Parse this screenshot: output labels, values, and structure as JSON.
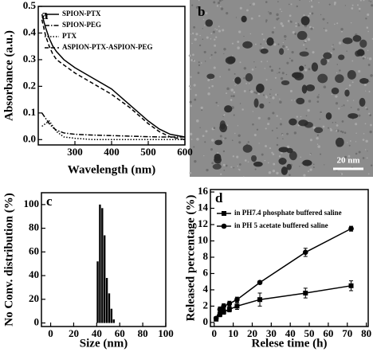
{
  "chart_data": [
    {
      "type": "line",
      "label": "a",
      "xlabel": "Wavelength (nm)",
      "ylabel": "Absorbance (a.u.)",
      "x": [
        210,
        220,
        230,
        240,
        250,
        270,
        300,
        350,
        400,
        450,
        500,
        530,
        560,
        600
      ],
      "series": [
        {
          "name": "SPION-PTX",
          "color": "#000000",
          "linestyle": "solid",
          "values": [
            0.47,
            0.42,
            0.38,
            0.35,
            0.33,
            0.3,
            0.27,
            0.23,
            0.19,
            0.13,
            0.07,
            0.04,
            0.02,
            0.01
          ]
        },
        {
          "name": "SPION-PEG",
          "color": "#000000",
          "linestyle": "dashdot",
          "values": [
            0.1,
            0.08,
            0.06,
            0.045,
            0.035,
            0.025,
            0.02,
            0.017,
            0.015,
            0.013,
            0.011,
            0.01,
            0.01,
            0.01
          ]
        },
        {
          "name": "PTX",
          "color": "#000000",
          "linestyle": "dotted",
          "values": [
            0.05,
            0.06,
            0.07,
            0.05,
            0.03,
            0.01,
            0.005,
            0,
            0,
            0,
            0,
            0,
            0,
            0
          ]
        },
        {
          "name": "ASPION-PTX-ASPION-PEG",
          "color": "#000000",
          "linestyle": "dashed",
          "values": [
            0.45,
            0.39,
            0.35,
            0.32,
            0.3,
            0.28,
            0.25,
            0.21,
            0.17,
            0.12,
            0.06,
            0.03,
            0.01,
            0
          ]
        }
      ],
      "xlim": [
        200,
        600
      ],
      "xticks": [
        300,
        400,
        500,
        600
      ],
      "ylim": [
        -0.02,
        0.5
      ],
      "yticks": [
        {
          "value": 0,
          "label": "0.0"
        },
        {
          "value": 0.1,
          "label": "0.1"
        },
        {
          "value": 0.2,
          "label": "0.2"
        },
        {
          "value": 0.3,
          "label": "0.3"
        },
        {
          "value": 0.4,
          "label": "0.4"
        },
        {
          "value": 0.5,
          "label": "0.5"
        }
      ]
    },
    {
      "type": "histogram",
      "label": "c",
      "xlabel": "Size (nm)",
      "ylabel": "No Conv. distribution (%)",
      "color": "#000000",
      "bins": [
        40,
        42,
        44,
        46,
        48,
        50,
        52,
        54,
        56
      ],
      "counts": [
        52,
        100,
        97,
        74,
        38,
        25,
        12,
        3
      ],
      "xlim": [
        -8,
        100
      ],
      "xticks": [
        0,
        20,
        40,
        60,
        80,
        100
      ],
      "ylim": [
        -3,
        110
      ],
      "yticks": [
        0,
        20,
        40,
        60,
        80,
        100
      ]
    },
    {
      "type": "line",
      "label": "d",
      "xlabel": "Relese time (h)",
      "ylabel": "Released percentage (%)",
      "x": [
        1,
        3,
        5,
        8,
        12,
        24,
        48,
        72
      ],
      "series": [
        {
          "name": "in PH7.4 phosphate buffered saline",
          "color": "#000000",
          "linestyle": "solid",
          "marker": "square",
          "values": [
            0.4,
            1,
            1.3,
            1.6,
            2,
            2.8,
            3.6,
            4.5
          ],
          "errors": [
            0.2,
            0.3,
            0.3,
            0.3,
            0.4,
            0.8,
            0.6,
            0.6
          ]
        },
        {
          "name": "in PH 5 acetate buffered saline",
          "color": "#000000",
          "linestyle": "solid",
          "marker": "circle",
          "values": [
            0.5,
            1.6,
            2,
            2.3,
            2.8,
            4.9,
            8.6,
            11.5
          ],
          "errors": [
            0.2,
            0.3,
            0.3,
            0.3,
            0.3,
            0.2,
            0.5,
            0.3
          ]
        }
      ],
      "xlim": [
        -2,
        81
      ],
      "xticks": [
        0,
        10,
        20,
        30,
        40,
        50,
        60,
        70,
        80
      ],
      "ylim": [
        -0.5,
        16.3
      ],
      "yticks": [
        0,
        2,
        4,
        6,
        8,
        10,
        12,
        14,
        16
      ]
    }
  ],
  "image_panel": {
    "label": "b",
    "scale_bar": "20 nm"
  }
}
